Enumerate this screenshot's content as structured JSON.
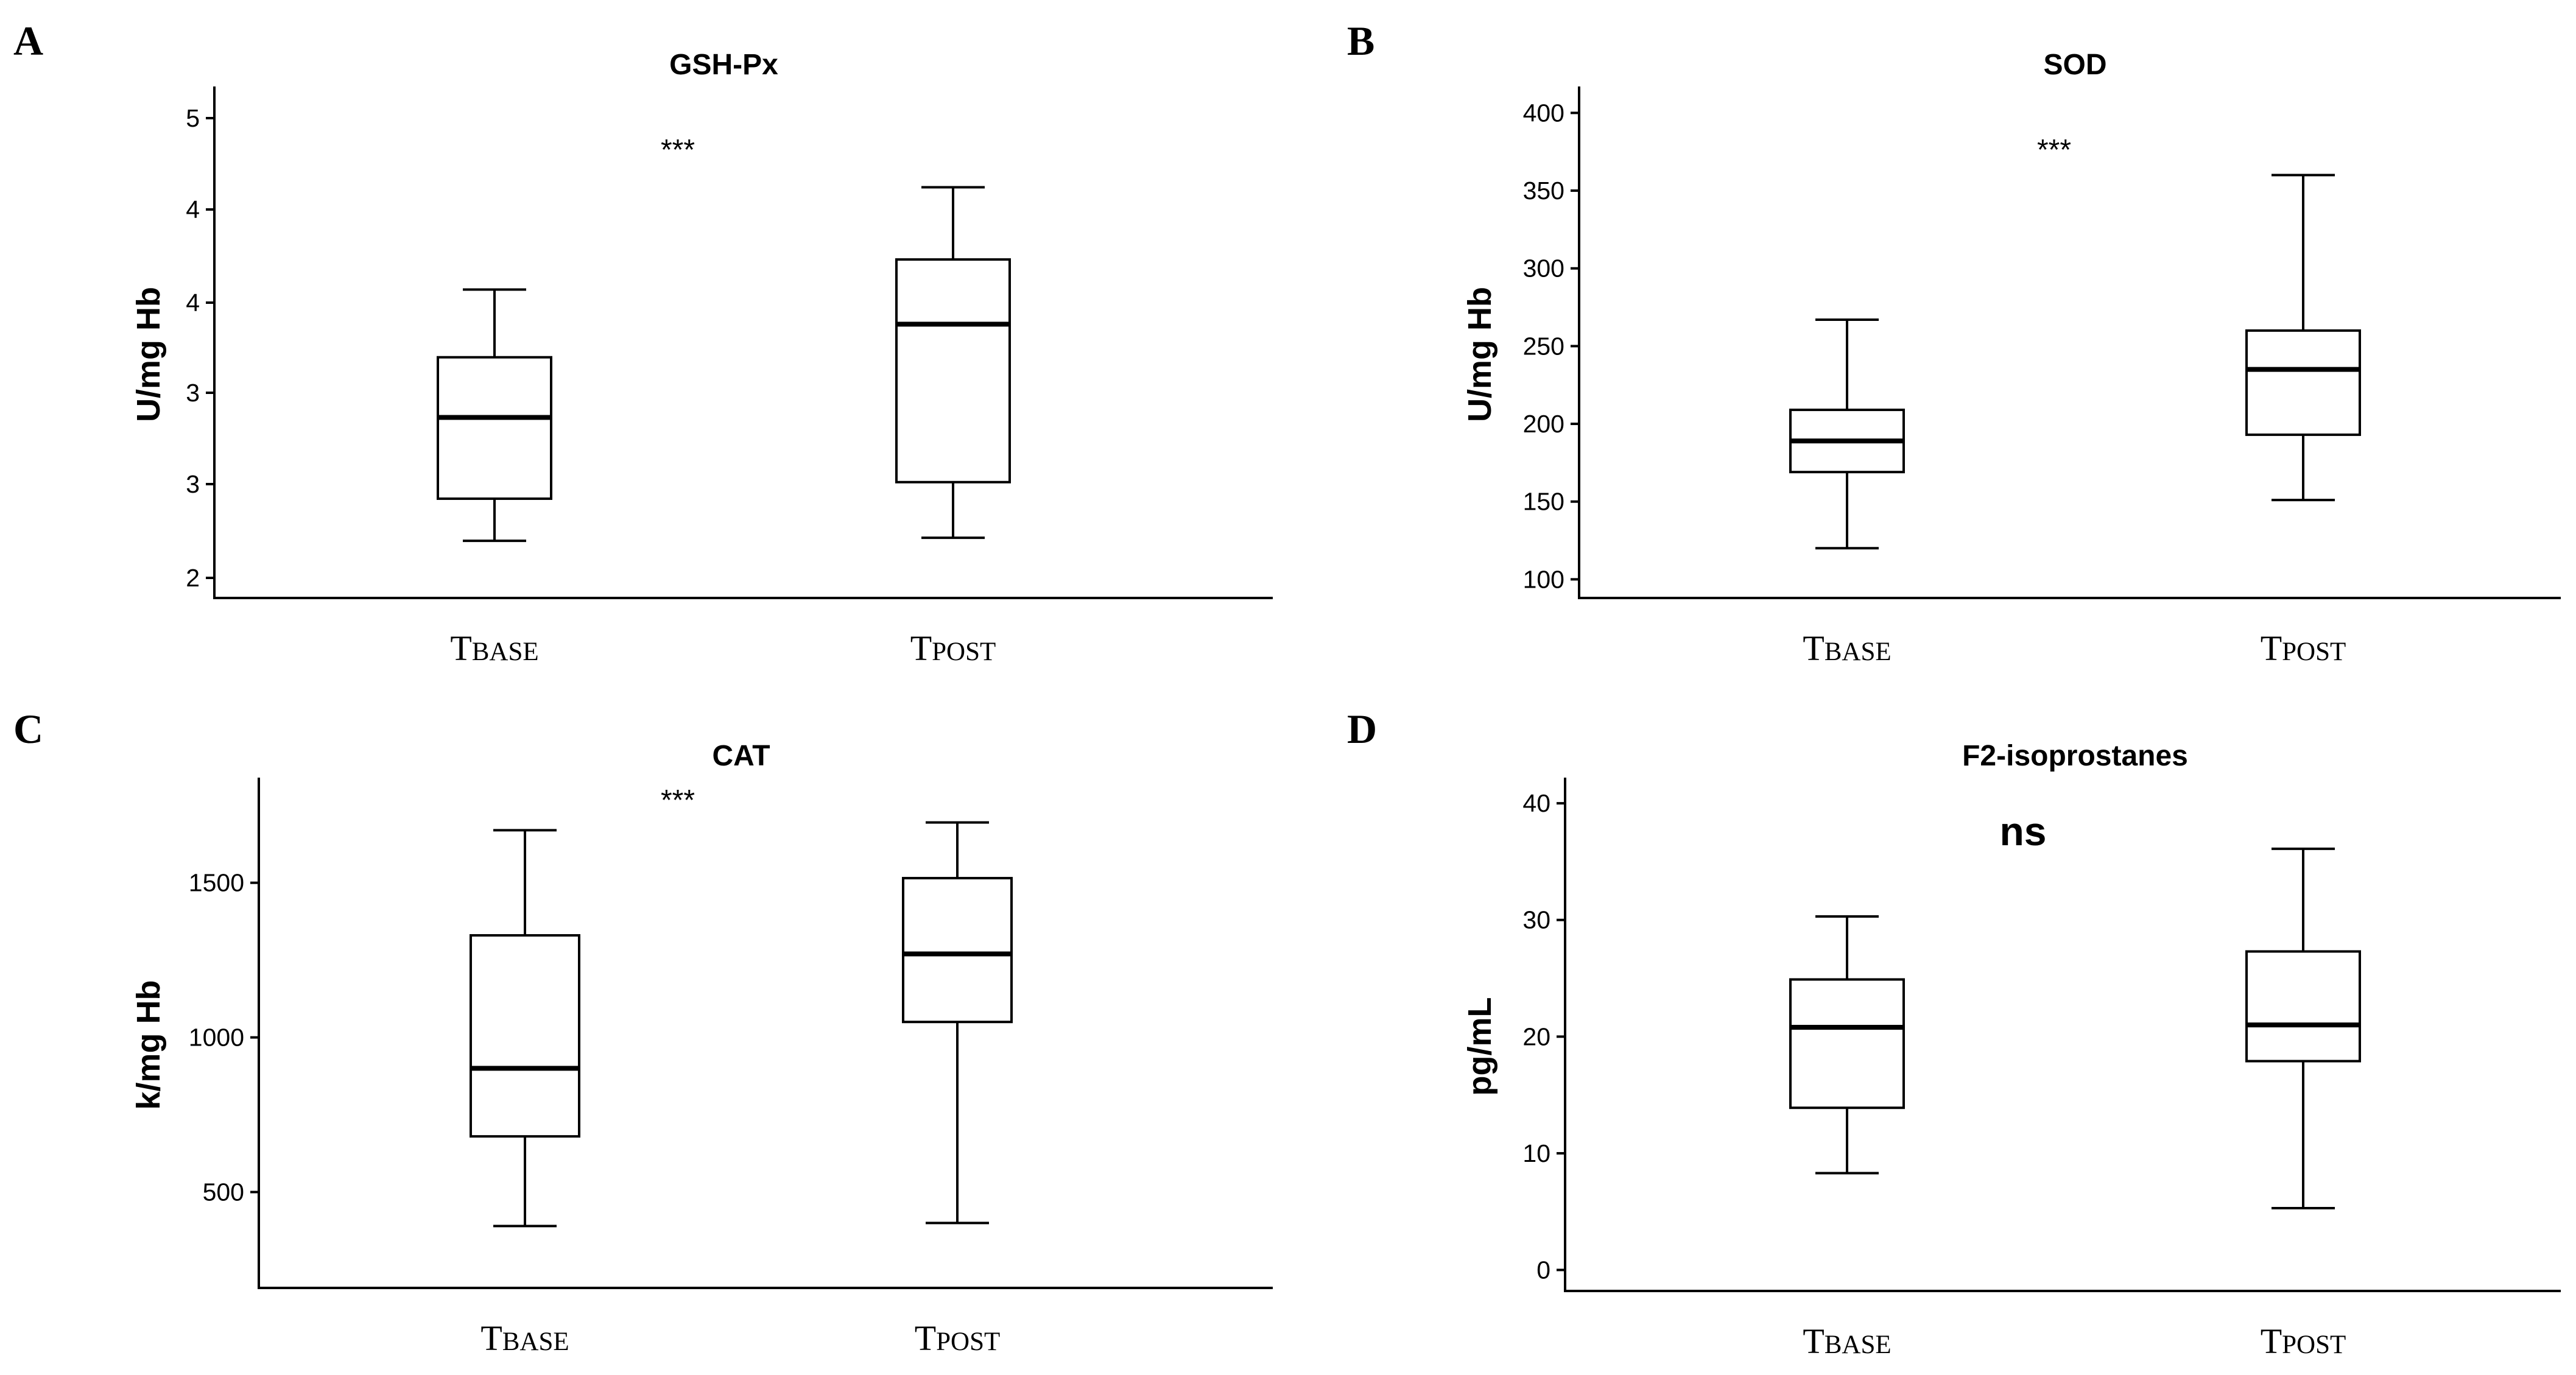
{
  "chart_data": [
    {
      "panel": "A",
      "type": "box",
      "title": "GSH-Px",
      "ylabel": "U/mg Hb",
      "yticks": [
        "2",
        "3",
        "3",
        "4",
        "4",
        "5"
      ],
      "ylim": [
        1.9,
        5.3
      ],
      "categories": [
        {
          "main": "T",
          "sub": "BASE"
        },
        {
          "main": "T",
          "sub": "POST"
        }
      ],
      "boxes": [
        {
          "whisker_low": 2.28,
          "q1": 2.56,
          "median": 3.1,
          "q3": 3.5,
          "whisker_high": 3.95
        },
        {
          "whisker_low": 2.3,
          "q1": 2.67,
          "median": 3.72,
          "q3": 4.15,
          "whisker_high": 4.63
        }
      ],
      "significance": "***"
    },
    {
      "panel": "B",
      "type": "box",
      "title": "SOD",
      "ylabel": "U/mg Hb",
      "yticks": [
        "100",
        "150",
        "200",
        "250",
        "300",
        "350",
        "400"
      ],
      "ylim": [
        88,
        417
      ],
      "categories": [
        {
          "main": "T",
          "sub": "BASE"
        },
        {
          "main": "T",
          "sub": "POST"
        }
      ],
      "boxes": [
        {
          "whisker_low": 120,
          "q1": 169,
          "median": 189,
          "q3": 209,
          "whisker_high": 267
        },
        {
          "whisker_low": 151,
          "q1": 193,
          "median": 235,
          "q3": 260,
          "whisker_high": 360
        }
      ],
      "significance": "***"
    },
    {
      "panel": "C",
      "type": "box",
      "title": "CAT",
      "ylabel": "k/mg Hb",
      "yticks": [
        "500",
        "1000",
        "1500"
      ],
      "ylim": [
        190,
        1840
      ],
      "categories": [
        {
          "main": "T",
          "sub": "BASE"
        },
        {
          "main": "T",
          "sub": "POST"
        }
      ],
      "boxes": [
        {
          "whisker_low": 390,
          "q1": 680,
          "median": 900,
          "q3": 1330,
          "whisker_high": 1670
        },
        {
          "whisker_low": 400,
          "q1": 1050,
          "median": 1270,
          "q3": 1515,
          "whisker_high": 1695
        }
      ],
      "significance": "***"
    },
    {
      "panel": "D",
      "type": "box",
      "title": "F2-isoprostanes",
      "ylabel": "pg/mL",
      "yticks": [
        "0",
        "10",
        "20",
        "30",
        "40"
      ],
      "ylim": [
        -1.8,
        42.2
      ],
      "categories": [
        {
          "main": "T",
          "sub": "BASE"
        },
        {
          "main": "T",
          "sub": "POST"
        }
      ],
      "boxes": [
        {
          "whisker_low": 8.3,
          "q1": 13.9,
          "median": 20.8,
          "q3": 24.9,
          "whisker_high": 30.3
        },
        {
          "whisker_low": 5.3,
          "q1": 17.9,
          "median": 21.0,
          "q3": 27.3,
          "whisker_high": 36.1
        }
      ],
      "significance": "ns"
    }
  ]
}
